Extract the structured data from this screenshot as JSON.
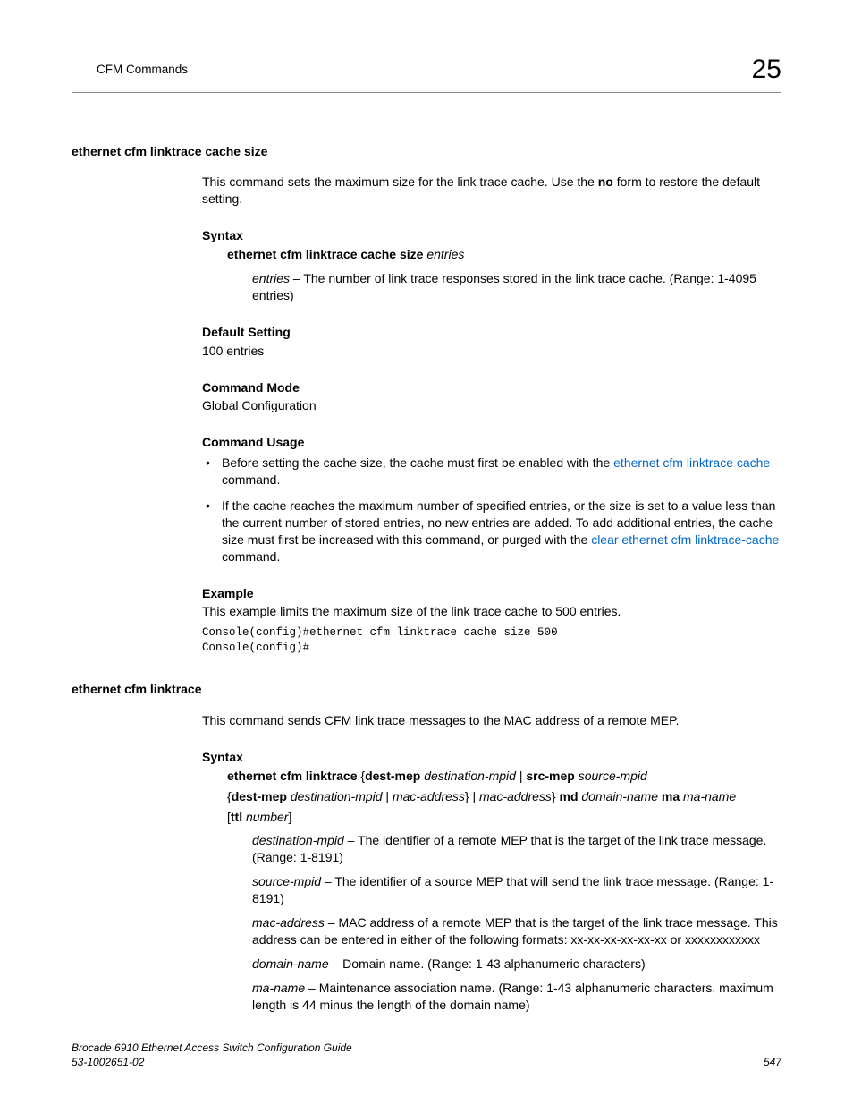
{
  "header": {
    "left": "CFM Commands",
    "chapter": "25"
  },
  "section1": {
    "title": "ethernet cfm linktrace cache size",
    "desc_before_no": "This command sets the maximum size for the link trace cache. Use the ",
    "no": "no",
    "desc_after_no": " form to restore the default setting.",
    "syntax_label": "Syntax",
    "syntax_cmd": "ethernet cfm linktrace cache size",
    "syntax_param": "entries",
    "entries_param": "entries",
    "entries_desc": " – The number of link trace responses stored in the link trace cache. (Range: 1-4095 entries)",
    "default_label": "Default Setting",
    "default_value": "100 entries",
    "mode_label": "Command Mode",
    "mode_value": "Global Configuration",
    "usage_label": "Command Usage",
    "usage1_before": "Before setting the cache size, the cache must first be enabled with the ",
    "usage1_link": "ethernet cfm linktrace cache",
    "usage1_after": " command.",
    "usage2_before": "If the cache reaches the maximum number of specified entries, or the size is set to a value less than the current number of stored entries, no new entries are added. To add additional entries, the cache size must first be increased with this command, or purged with the ",
    "usage2_link": "clear ethernet cfm linktrace-cache",
    "usage2_after": " command.",
    "example_label": "Example",
    "example_text": "This example limits the maximum size of the link trace cache to 500 entries.",
    "example_code": "Console(config)#ethernet cfm linktrace cache size 500\nConsole(config)#"
  },
  "section2": {
    "title": "ethernet cfm linktrace",
    "desc": "This command sends CFM link trace messages to the MAC address of a remote MEP.",
    "syntax_label": "Syntax",
    "s_cmd1": "ethernet cfm linktrace",
    "s_brace_open": " {",
    "s_destmep": "dest-mep",
    "s_sp": " ",
    "s_destmpid": "destination-mpid",
    "s_pipe": " | ",
    "s_srcmep": "src-mep",
    "s_srcmpid": "source-mpid",
    "s_line2_open": "{",
    "s_macaddr": "mac-address",
    "s_brace_close": "}",
    "s_md": "md",
    "s_domname": "domain-name",
    "s_ma": "ma",
    "s_maname": "ma-name",
    "s_line3_open": "[",
    "s_ttl": "ttl",
    "s_number": "number",
    "s_line3_close": "]",
    "p_destmpid": "destination-mpid",
    "p_destmpid_desc": " – The identifier of a remote MEP that is the target of the link trace message. (Range: 1-8191)",
    "p_srcmpid": "source-mpid",
    "p_srcmpid_desc": " – The identifier of a source MEP that will send the link trace message. (Range: 1-8191)",
    "p_macaddr": "mac-address",
    "p_macaddr_desc": " – MAC address of a remote MEP that is the target of the link trace message. This address can be entered in either of the following formats: xx-xx-xx-xx-xx-xx or xxxxxxxxxxxx",
    "p_domname": "domain-name",
    "p_domname_desc": " – Domain name. (Range: 1-43 alphanumeric characters)",
    "p_maname": "ma-name",
    "p_maname_desc": " – Maintenance association name. (Range: 1-43 alphanumeric characters, maximum length is 44 minus the length of the domain name)"
  },
  "footer": {
    "line1": "Brocade 6910 Ethernet Access Switch Configuration Guide",
    "line2": "53-1002651-02",
    "page": "547"
  }
}
